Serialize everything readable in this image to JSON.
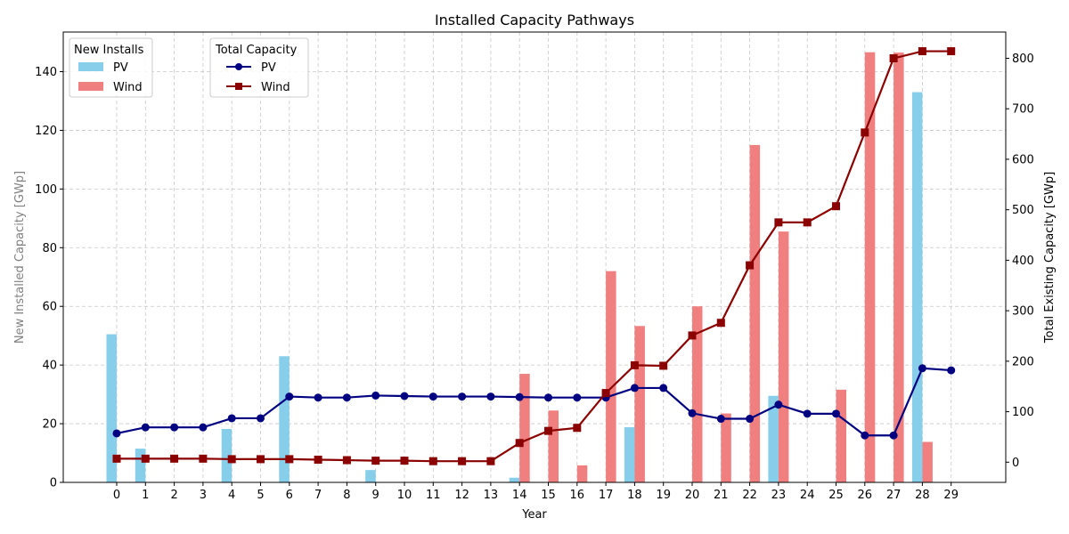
{
  "chart_data": {
    "type": "bar+line",
    "title": "Installed Capacity Pathways",
    "xlabel": "Year",
    "ylabel_left": "New Installed Capacity [GWp]",
    "ylabel_right": "Total Existing Capacity [GWp]",
    "x": [
      0,
      1,
      2,
      3,
      4,
      5,
      6,
      7,
      8,
      9,
      10,
      11,
      12,
      13,
      14,
      15,
      16,
      17,
      18,
      19,
      20,
      21,
      22,
      23,
      24,
      25,
      26,
      27,
      28,
      29
    ],
    "ylim_left": [
      0,
      153.5
    ],
    "ylim_right": [
      -40,
      852
    ],
    "yticks_left": [
      0,
      20,
      40,
      60,
      80,
      100,
      120,
      140
    ],
    "yticks_right": [
      0,
      100,
      200,
      300,
      400,
      500,
      600,
      700,
      800
    ],
    "grid": true,
    "bars": [
      {
        "name": "PV",
        "color": "#87ceeb",
        "values": [
          50.5,
          11.5,
          0,
          0,
          18.2,
          0,
          43,
          0,
          0,
          4.2,
          0,
          0,
          0,
          0,
          1.6,
          0,
          0,
          0,
          18.8,
          0,
          0,
          0,
          0,
          29.5,
          0,
          0,
          0,
          0,
          133,
          0
        ]
      },
      {
        "name": "Wind",
        "color": "#f08080",
        "values": [
          0,
          0,
          0,
          0,
          0,
          0,
          0,
          0,
          0,
          0,
          0,
          0,
          0,
          0,
          37,
          24.5,
          5.8,
          72,
          53.3,
          0,
          60,
          23.5,
          115,
          85.5,
          0,
          31.6,
          146.6,
          146.5,
          13.8,
          0
        ]
      }
    ],
    "lines": [
      {
        "name": "PV",
        "color": "#000080",
        "marker": "circle",
        "values": [
          57,
          69,
          69,
          69,
          87,
          87,
          130,
          128,
          128,
          132,
          131,
          130,
          130,
          130,
          129,
          128,
          128,
          128,
          147,
          147,
          97,
          86,
          86,
          114,
          96,
          96,
          53,
          53,
          186,
          182
        ]
      },
      {
        "name": "Wind",
        "color": "#8b0000",
        "marker": "square",
        "values": [
          7,
          7,
          7,
          7,
          6,
          6,
          6,
          5,
          4,
          3,
          3,
          2,
          2,
          2,
          38,
          62,
          68,
          137,
          192,
          191,
          251,
          276,
          390,
          475,
          475,
          507,
          653,
          800,
          814,
          814
        ]
      }
    ],
    "legends": [
      {
        "title": "New Installs",
        "entries": [
          "PV",
          "Wind"
        ],
        "placement": "upper-left"
      },
      {
        "title": "Total Capacity",
        "entries": [
          "PV",
          "Wind"
        ],
        "placement": "upper-left"
      }
    ]
  }
}
